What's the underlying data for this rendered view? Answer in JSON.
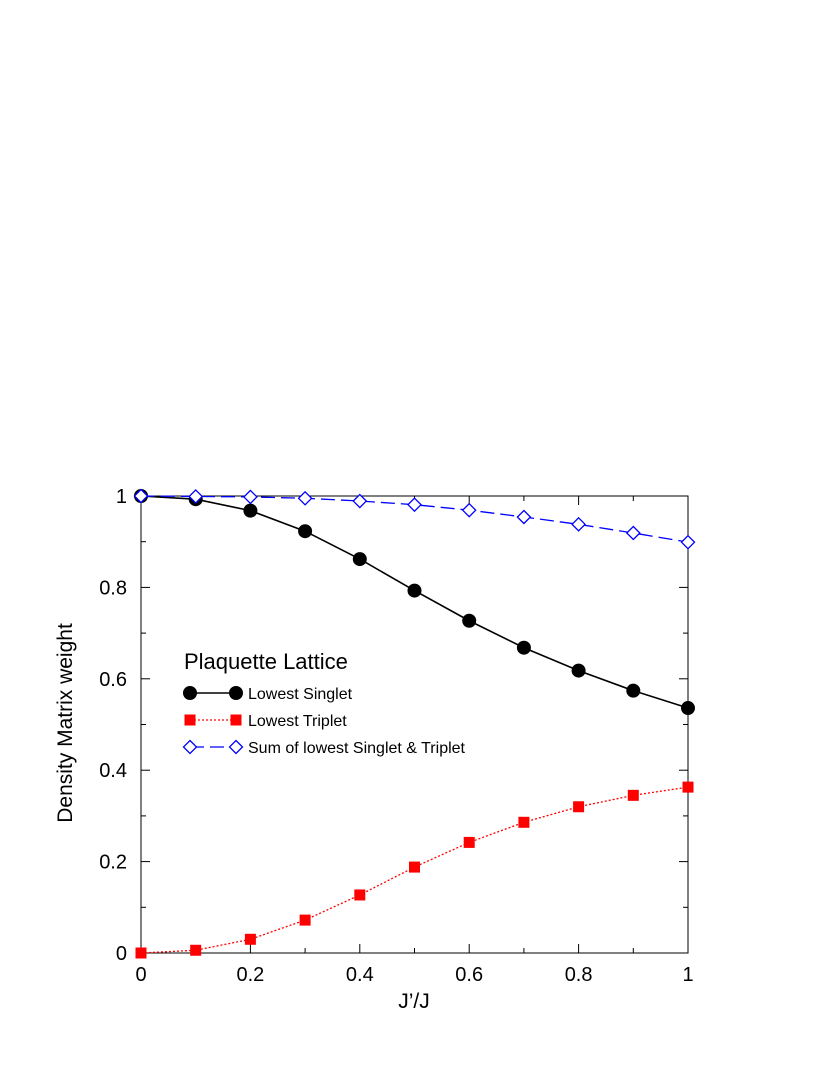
{
  "chart_data": {
    "type": "line",
    "title": "",
    "xlabel": "J’/J",
    "ylabel": "Density Matrix weight",
    "xlim": [
      0,
      1
    ],
    "ylim": [
      0,
      1
    ],
    "x_ticks": [
      "0",
      "0.2",
      "0.4",
      "0.6",
      "0.8",
      "1"
    ],
    "y_ticks": [
      "0",
      "0.2",
      "0.4",
      "0.6",
      "0.8",
      "1"
    ],
    "grid": false,
    "legend_title": "Plaquette Lattice",
    "legend_position": "center-left",
    "x": [
      0,
      0.1,
      0.2,
      0.3,
      0.4,
      0.5,
      0.6,
      0.7,
      0.8,
      0.9,
      1.0
    ],
    "series": [
      {
        "name": "Lowest Singlet",
        "color": "#000000",
        "marker": "circle",
        "line_style": "solid",
        "values": [
          1.0,
          0.993,
          0.968,
          0.923,
          0.862,
          0.793,
          0.727,
          0.668,
          0.618,
          0.574,
          0.536
        ]
      },
      {
        "name": "Lowest Triplet",
        "color": "#ff0000",
        "marker": "square",
        "line_style": "dotted",
        "values": [
          0.0,
          0.006,
          0.03,
          0.072,
          0.127,
          0.188,
          0.242,
          0.286,
          0.32,
          0.345,
          0.363
        ]
      },
      {
        "name": "Sum of lowest Singlet & Triplet",
        "color": "#0000ff",
        "marker": "diamond-open",
        "line_style": "dashed",
        "values": [
          1.0,
          0.999,
          0.998,
          0.995,
          0.989,
          0.981,
          0.969,
          0.954,
          0.938,
          0.919,
          0.899
        ]
      }
    ]
  }
}
